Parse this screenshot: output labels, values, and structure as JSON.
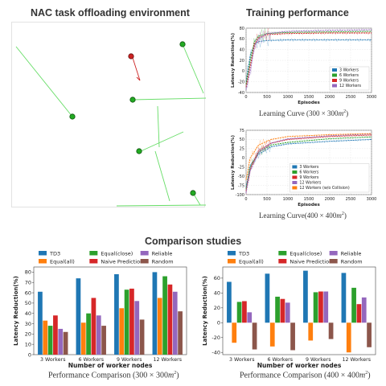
{
  "env": {
    "title": "NAC task offloading environment",
    "colors": {
      "worker": "#22aa22",
      "link": "#66dd66",
      "agent": "#cc2222"
    }
  },
  "training": {
    "title": "Training performance",
    "caption1": {
      "pre": "Learning Curve (300 × 300",
      "unit": "m",
      "exp": "2",
      "post": ")"
    },
    "caption2": {
      "pre": "Learning Curve(400 × 400",
      "unit": "m",
      "exp": "2",
      "post": ")"
    }
  },
  "comparison": {
    "title": "Comparison studies",
    "caption1": {
      "pre": "Performance Comparison (300 × 300",
      "unit": "m",
      "exp": "2",
      "post": ")"
    },
    "caption2": {
      "pre": "Performance Comparison (400 × 400",
      "unit": "m",
      "exp": "2",
      "post": ")"
    }
  },
  "chart_data": [
    {
      "type": "line",
      "xlabel": "Episodes",
      "ylabel": "Latency Reduction(%)",
      "xlim": [
        0,
        3000
      ],
      "ylim": [
        -40,
        80
      ],
      "xticks": [
        0,
        500,
        1000,
        1500,
        2000,
        2500,
        3000
      ],
      "yticks": [
        -40,
        -20,
        0,
        20,
        40,
        60,
        80
      ],
      "grid": true,
      "legend": "bottom-right",
      "series": [
        {
          "name": "3 Workers",
          "color": "#1f77b4",
          "x": [
            0,
            100,
            200,
            300,
            500,
            1000,
            2000,
            3000
          ],
          "y": [
            -20,
            30,
            50,
            55,
            57,
            58,
            58,
            58
          ]
        },
        {
          "name": "6 Workers",
          "color": "#2ca02c",
          "x": [
            0,
            100,
            200,
            300,
            500,
            1000,
            2000,
            3000
          ],
          "y": [
            -25,
            20,
            55,
            65,
            70,
            72,
            73,
            74
          ]
        },
        {
          "name": "9 Workers",
          "color": "#d62728",
          "x": [
            0,
            100,
            200,
            300,
            500,
            1000,
            2000,
            3000
          ],
          "y": [
            -30,
            10,
            50,
            62,
            68,
            70,
            71,
            71
          ]
        },
        {
          "name": "12 Workers",
          "color": "#9467bd",
          "x": [
            0,
            100,
            200,
            300,
            500,
            1000,
            2000,
            3000
          ],
          "y": [
            -35,
            0,
            45,
            60,
            70,
            74,
            76,
            77
          ]
        }
      ]
    },
    {
      "type": "line",
      "xlabel": "Episodes",
      "ylabel": "Latency Reduction(%)",
      "xlim": [
        0,
        3000
      ],
      "ylim": [
        -100,
        75
      ],
      "xticks": [
        0,
        500,
        1000,
        1500,
        2000,
        2500,
        3000
      ],
      "yticks": [
        -100,
        -75,
        -50,
        -25,
        0,
        25,
        50,
        75
      ],
      "grid": true,
      "legend": "bottom-right",
      "series": [
        {
          "name": "3 Workers",
          "color": "#1f77b4",
          "x": [
            0,
            100,
            300,
            600,
            1000,
            2000,
            3000
          ],
          "y": [
            -80,
            -20,
            10,
            30,
            38,
            45,
            50
          ]
        },
        {
          "name": "6 Workers",
          "color": "#2ca02c",
          "x": [
            0,
            100,
            300,
            600,
            1000,
            2000,
            3000
          ],
          "y": [
            -85,
            -25,
            15,
            35,
            42,
            52,
            57
          ]
        },
        {
          "name": "9 Workers",
          "color": "#d62728",
          "x": [
            0,
            100,
            300,
            600,
            1000,
            2000,
            3000
          ],
          "y": [
            -90,
            -30,
            20,
            40,
            50,
            58,
            62
          ]
        },
        {
          "name": "12 Workers",
          "color": "#9467bd",
          "x": [
            0,
            100,
            300,
            600,
            1000,
            2000,
            3000
          ],
          "y": [
            -95,
            -35,
            15,
            40,
            52,
            60,
            65
          ]
        },
        {
          "name": "12 Workers (w/o Collision)",
          "color": "#ff7f0e",
          "x": [
            0,
            100,
            300,
            600,
            1000,
            2000,
            3000
          ],
          "y": [
            -60,
            0,
            35,
            50,
            58,
            63,
            66
          ]
        }
      ]
    },
    {
      "type": "bar",
      "xlabel": "Number of worker nodes",
      "ylabel": "Latency Reduction(%)",
      "ylim": [
        0,
        85
      ],
      "yticks": [
        0,
        10,
        20,
        30,
        40,
        50,
        60,
        70,
        80
      ],
      "categories": [
        "3 Workers",
        "6 Workers",
        "9 Workers",
        "12 Workers"
      ],
      "legend": "top",
      "series": [
        {
          "name": "TD3",
          "color": "#1f77b4",
          "values": [
            61,
            74,
            78,
            80
          ]
        },
        {
          "name": "Equal(all)",
          "color": "#ff7f0e",
          "values": [
            33,
            31,
            45,
            55
          ]
        },
        {
          "name": "Equal(close)",
          "color": "#2ca02c",
          "values": [
            28,
            40,
            63,
            76
          ]
        },
        {
          "name": "Naive Prediction",
          "color": "#d62728",
          "values": [
            38,
            55,
            64,
            68
          ]
        },
        {
          "name": "Reliable",
          "color": "#9467bd",
          "values": [
            25,
            38,
            52,
            61
          ]
        },
        {
          "name": "Random",
          "color": "#8c564b",
          "values": [
            22,
            28,
            34,
            42
          ]
        }
      ]
    },
    {
      "type": "bar",
      "xlabel": "Number of worker nodes",
      "ylabel": "Latency Reduction(%)",
      "ylim": [
        -43,
        75
      ],
      "yticks": [
        -40,
        -20,
        0,
        20,
        40,
        60
      ],
      "categories": [
        "3 Workers",
        "6 Workers",
        "9 Workers",
        "12 Workers"
      ],
      "legend": "top",
      "series": [
        {
          "name": "TD3",
          "color": "#1f77b4",
          "values": [
            55,
            66,
            70,
            67
          ]
        },
        {
          "name": "Equal(all)",
          "color": "#ff7f0e",
          "values": [
            -27,
            -32,
            -24,
            -40
          ]
        },
        {
          "name": "Equal(close)",
          "color": "#2ca02c",
          "values": [
            28,
            35,
            41,
            47
          ]
        },
        {
          "name": "Naive Prediction",
          "color": "#d62728",
          "values": [
            29,
            32,
            42,
            25
          ]
        },
        {
          "name": "Reliable",
          "color": "#9467bd",
          "values": [
            14,
            27,
            42,
            34
          ]
        },
        {
          "name": "Random",
          "color": "#8c564b",
          "values": [
            -36,
            -37,
            -22,
            -33
          ]
        }
      ]
    }
  ]
}
